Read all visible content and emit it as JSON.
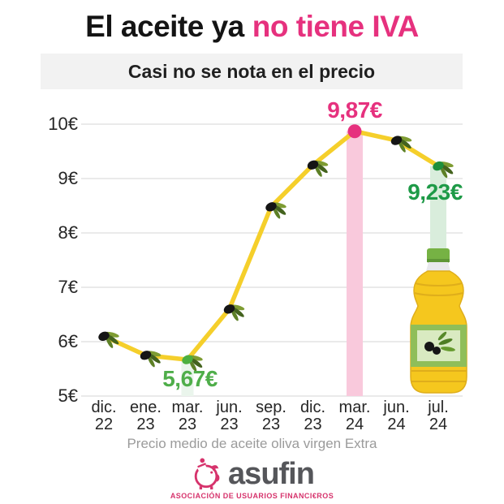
{
  "title": {
    "black": "El aceite ya",
    "pink": "no tiene IVA"
  },
  "subtitle": "Casi no se nota en el precio",
  "caption": "Precio medio de aceite oliva virgen Extra",
  "logo": {
    "name": "asufin",
    "tagline": "ASOCIACIÓN DE USUARIOS FINANCI€ROS"
  },
  "colors": {
    "accent_pink": "#E6317E",
    "line_yellow": "#F5CF2B",
    "band_pink": "#F9C9DC",
    "band_green": "#D9EDDC",
    "band_green_faint": "#EAF5EC",
    "label_green": "#1E9A47",
    "grid": "#E4E4E4"
  },
  "chart_data": {
    "type": "line",
    "title": "El aceite ya no tiene IVA",
    "subtitle": "Casi no se nota en el precio",
    "xlabel": "",
    "ylabel": "Precio medio de aceite oliva virgen Extra (€)",
    "categories": [
      "dic. 22",
      "ene. 23",
      "mar. 23",
      "jun. 23",
      "sep. 23",
      "dic. 23",
      "mar. 24",
      "jun. 24",
      "jul. 24"
    ],
    "values": [
      6.1,
      5.75,
      5.67,
      6.6,
      8.48,
      9.25,
      9.87,
      9.7,
      9.23
    ],
    "ylim": [
      5,
      10
    ],
    "ytick_labels": [
      "5€",
      "6€",
      "7€",
      "8€",
      "9€",
      "10€"
    ],
    "grid": true,
    "legend": false,
    "line_color": "#F5CF2B",
    "markers": [
      "olive-black",
      "olive-black",
      "olive-green",
      "olive-black",
      "olive-black",
      "olive-black",
      "pink-dot",
      "olive-black",
      "olive-darkgreen"
    ],
    "annotations": [
      {
        "index": 2,
        "label": "5,67€",
        "color": "#4FAE4A",
        "position": "below",
        "band_color": "#EAF5EC",
        "band_to": "axis"
      },
      {
        "index": 6,
        "label": "9,87€",
        "color": "#E6317E",
        "position": "above",
        "band_color": "#F9C9DC",
        "band_to": "axis"
      },
      {
        "index": 8,
        "label": "9,23€",
        "color": "#1E9A47",
        "position": "left-below",
        "band_color": "#D9EDDC",
        "band_to": "bottle"
      }
    ]
  }
}
